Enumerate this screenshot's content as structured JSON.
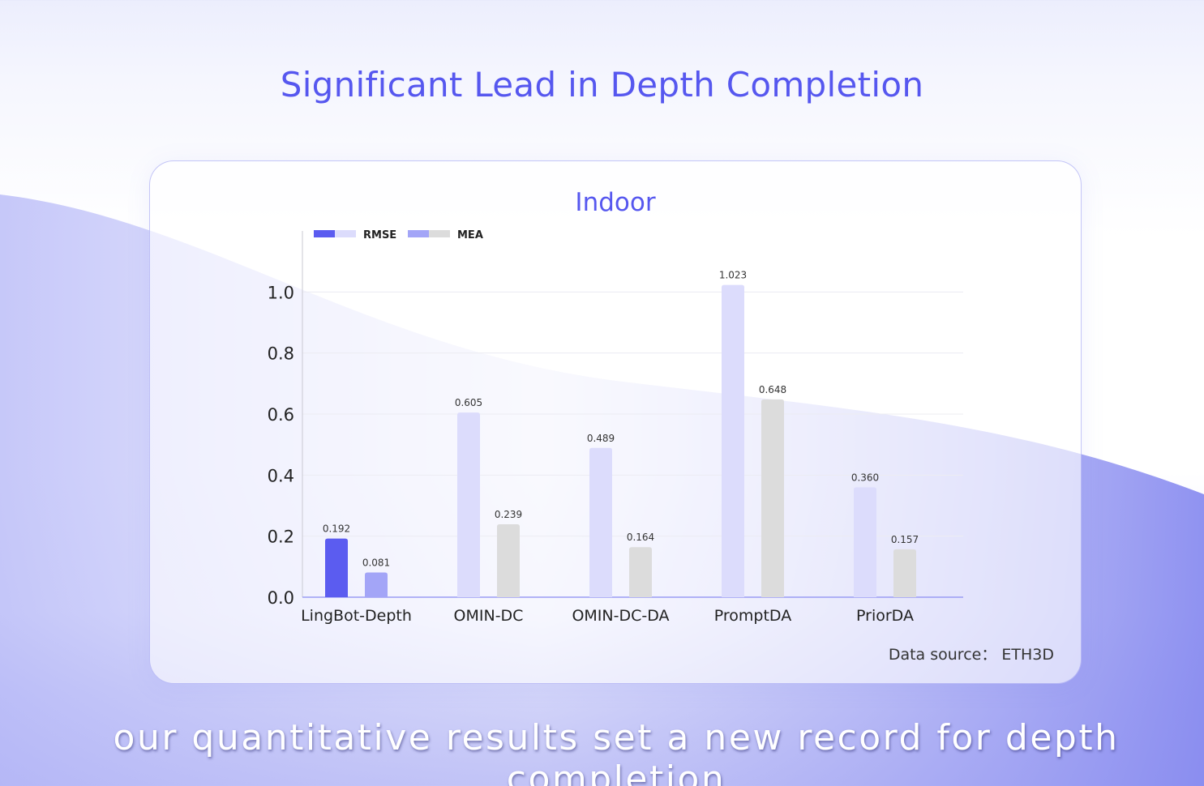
{
  "page": {
    "headline": "Significant Lead in Depth Completion",
    "footer": "our quantitative results set a new record for depth completion",
    "data_source": "Data source： ETH3D"
  },
  "colors": {
    "headline": "#5657ef",
    "rmse_highlight": "#5b5cf0",
    "mea_highlight": "#a3a5f7",
    "rmse": "#dcdcfc",
    "mea": "#dcdcdc"
  },
  "chart_data": {
    "type": "bar",
    "title": "Indoor",
    "categories": [
      "LingBot-Depth",
      "OMIN-DC",
      "OMIN-DC-DA",
      "PromptDA",
      "PriorDA"
    ],
    "series": [
      {
        "name": "RMSE",
        "values": [
          0.192,
          0.605,
          0.489,
          1.023,
          0.36
        ],
        "labels": [
          "0.192",
          "0.605",
          "0.489",
          "1.023",
          "0.360"
        ]
      },
      {
        "name": "MEA",
        "values": [
          0.081,
          0.239,
          0.164,
          0.648,
          0.157
        ],
        "labels": [
          "0.081",
          "0.239",
          "0.164",
          "0.648",
          "0.157"
        ]
      }
    ],
    "ylim": [
      0,
      1.2
    ],
    "yticks": [
      0.0,
      0.2,
      0.4,
      0.6,
      0.8,
      1.0
    ],
    "ytick_labels": [
      "0.0",
      "0.2",
      "0.4",
      "0.6",
      "0.8",
      "1.0"
    ],
    "highlight_category": "LingBot-Depth",
    "grid": true,
    "legend_position": "top-left"
  }
}
